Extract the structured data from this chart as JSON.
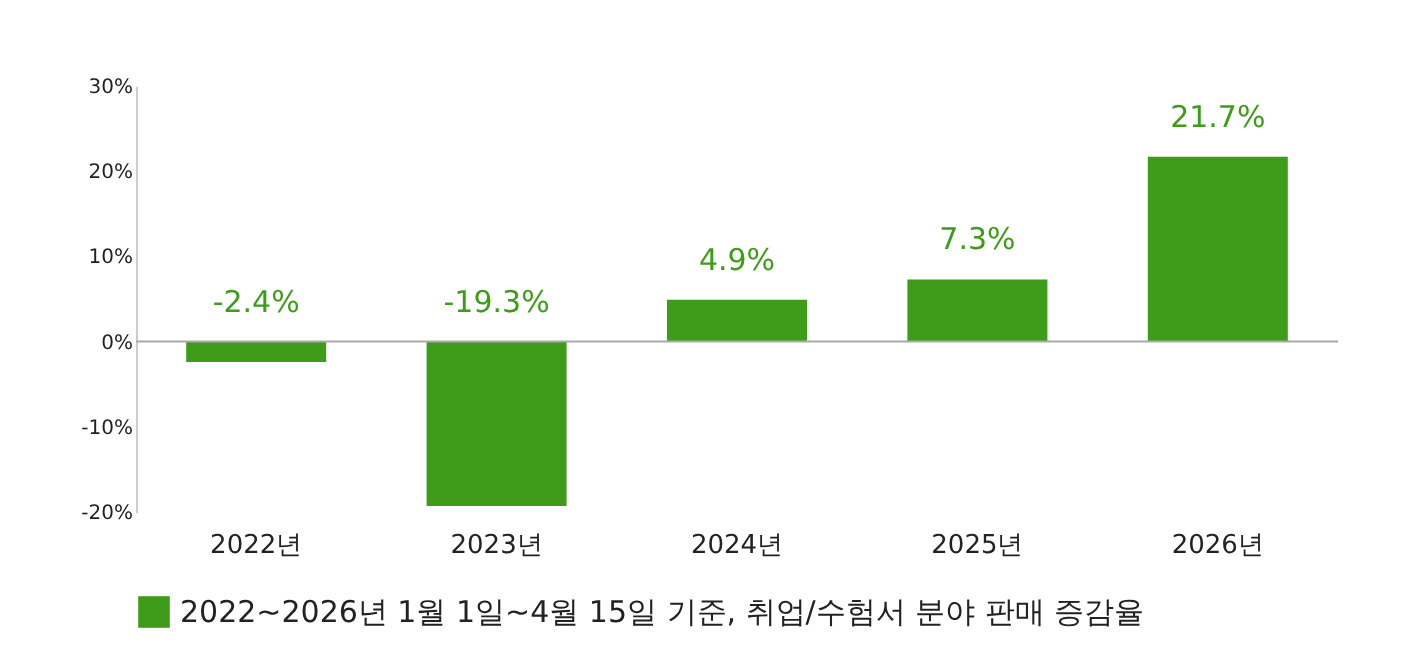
{
  "chart_data": {
    "type": "bar",
    "categories": [
      "2022년",
      "2023년",
      "2024년",
      "2025년",
      "2026년"
    ],
    "series": [
      {
        "name": "2022~2026년 1월 1일~4월 15일 기준, 취업/수험서 분야 판매 증감율",
        "color": "#3f9c1a",
        "values": [
          -2.4,
          -19.3,
          4.9,
          7.3,
          21.7
        ]
      }
    ],
    "value_labels": [
      "-2.4%",
      "-19.3%",
      "4.9%",
      "7.3%",
      "21.7%"
    ],
    "ylim": [
      -20,
      30
    ],
    "yticks": [
      {
        "value": -20,
        "label": "-20%"
      },
      {
        "value": -10,
        "label": "-10%"
      },
      {
        "value": 0,
        "label": "0%"
      },
      {
        "value": 10,
        "label": "10%"
      },
      {
        "value": 20,
        "label": "20%"
      },
      {
        "value": 30,
        "label": "30%"
      }
    ],
    "legend": "bottom"
  }
}
